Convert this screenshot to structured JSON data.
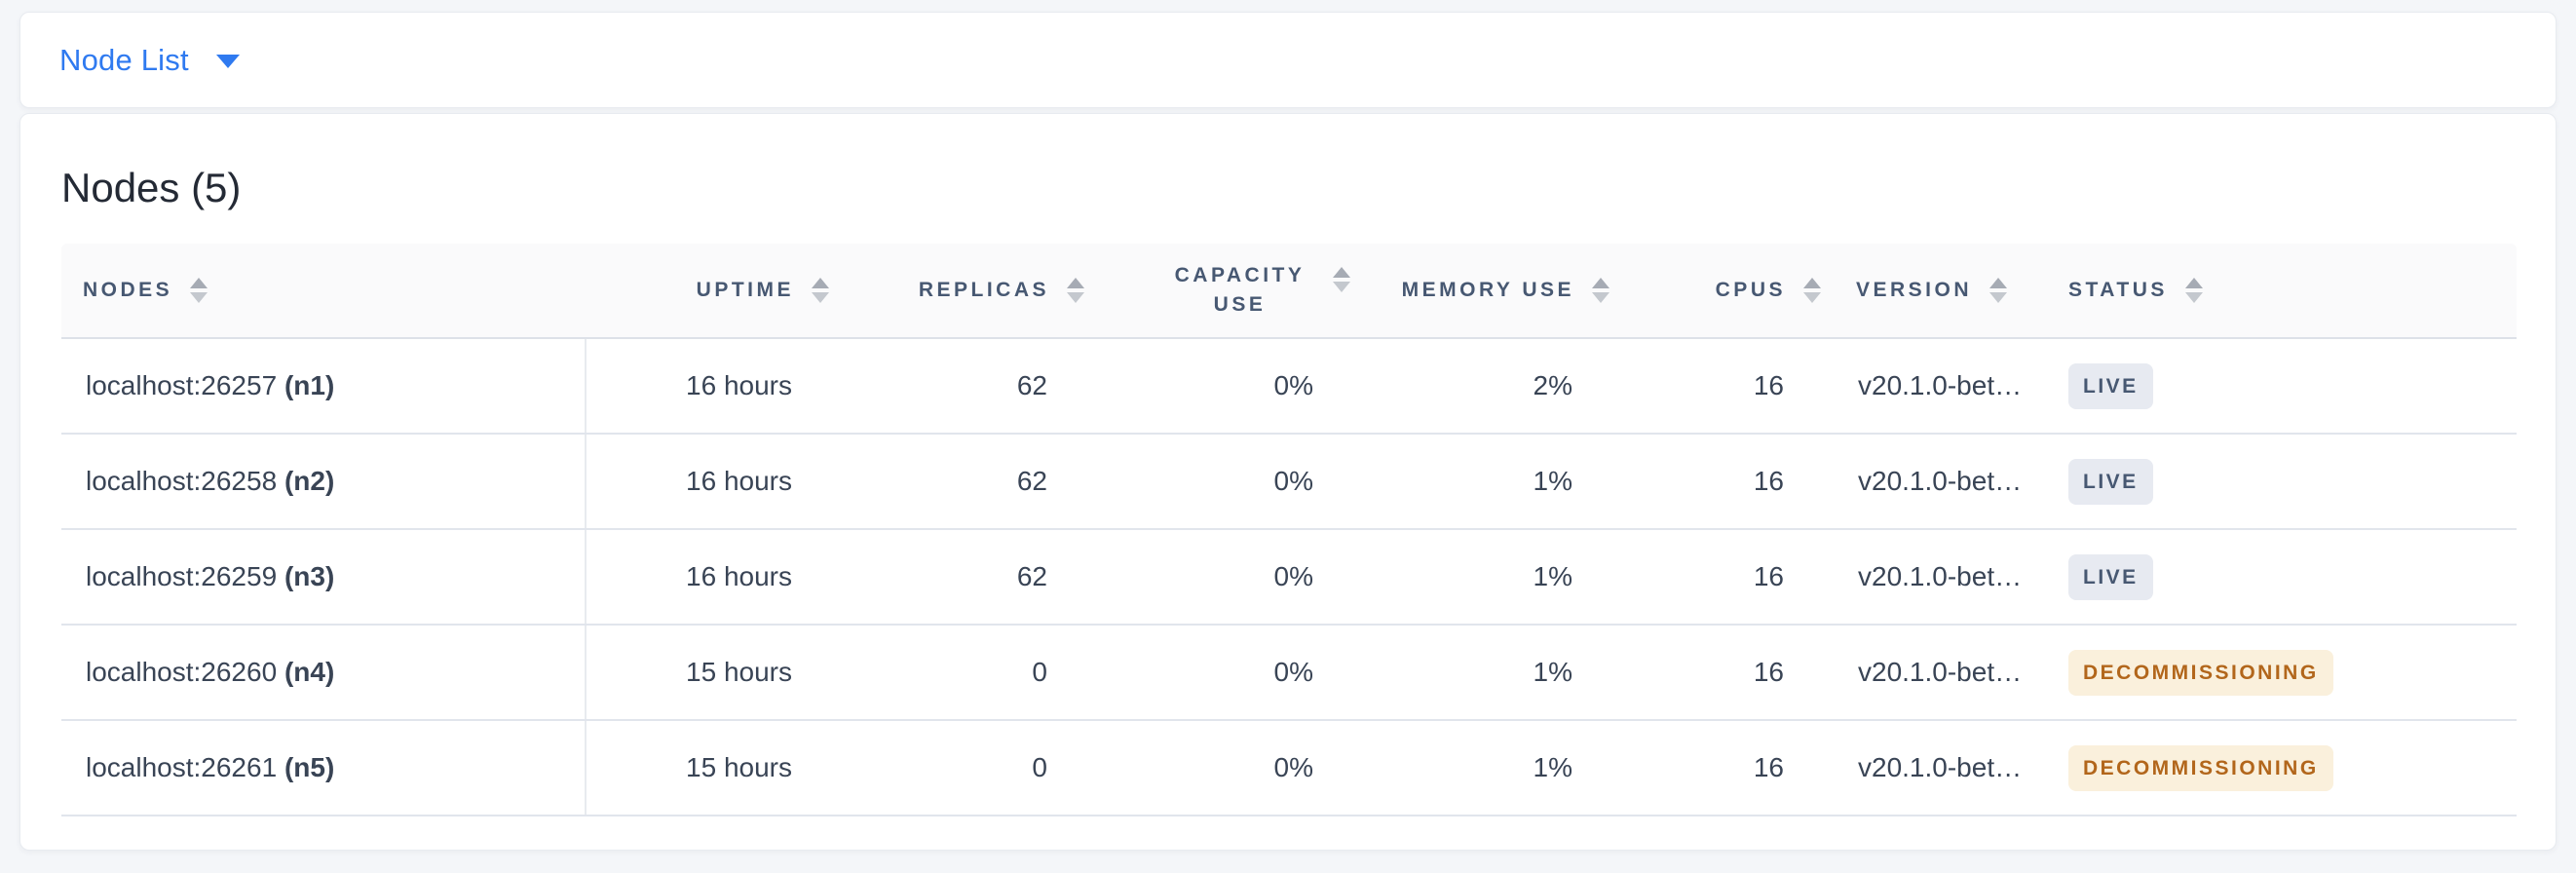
{
  "toolbar": {
    "dropdown_label": "Node List"
  },
  "main": {
    "title": "Nodes (5)"
  },
  "table": {
    "columns": [
      {
        "label": "NODES"
      },
      {
        "label": "UPTIME"
      },
      {
        "label": "REPLICAS"
      },
      {
        "label": "CAPACITY USE"
      },
      {
        "label": "MEMORY USE"
      },
      {
        "label": "CPUS"
      },
      {
        "label": "VERSION"
      },
      {
        "label": "STATUS"
      }
    ],
    "rows": [
      {
        "address": "localhost:26257",
        "node": "(n1)",
        "uptime": "16 hours",
        "replicas": "62",
        "capacity_use": "0%",
        "memory_use": "2%",
        "cpus": "16",
        "version": "v20.1.0-bet…",
        "status": {
          "label": "LIVE",
          "type": "live"
        }
      },
      {
        "address": "localhost:26258",
        "node": "(n2)",
        "uptime": "16 hours",
        "replicas": "62",
        "capacity_use": "0%",
        "memory_use": "1%",
        "cpus": "16",
        "version": "v20.1.0-bet…",
        "status": {
          "label": "LIVE",
          "type": "live"
        }
      },
      {
        "address": "localhost:26259",
        "node": "(n3)",
        "uptime": "16 hours",
        "replicas": "62",
        "capacity_use": "0%",
        "memory_use": "1%",
        "cpus": "16",
        "version": "v20.1.0-bet…",
        "status": {
          "label": "LIVE",
          "type": "live"
        }
      },
      {
        "address": "localhost:26260",
        "node": "(n4)",
        "uptime": "15 hours",
        "replicas": "0",
        "capacity_use": "0%",
        "memory_use": "1%",
        "cpus": "16",
        "version": "v20.1.0-bet…",
        "status": {
          "label": "DECOMMISSIONING",
          "type": "decommissioning"
        }
      },
      {
        "address": "localhost:26261",
        "node": "(n5)",
        "uptime": "15 hours",
        "replicas": "0",
        "capacity_use": "0%",
        "memory_use": "1%",
        "cpus": "16",
        "version": "v20.1.0-bet…",
        "status": {
          "label": "DECOMMISSIONING",
          "type": "decommissioning"
        }
      }
    ]
  },
  "colors": {
    "accent_blue": "#2F7AF0",
    "header_text": "#475872",
    "cell_text": "#394455",
    "live_badge_bg": "#E7EAF1",
    "live_badge_text": "#475872",
    "decommissioning_badge_bg": "#FAF0DC",
    "decommissioning_badge_text": "#B2661B",
    "page_background": "#F4F6F9"
  }
}
